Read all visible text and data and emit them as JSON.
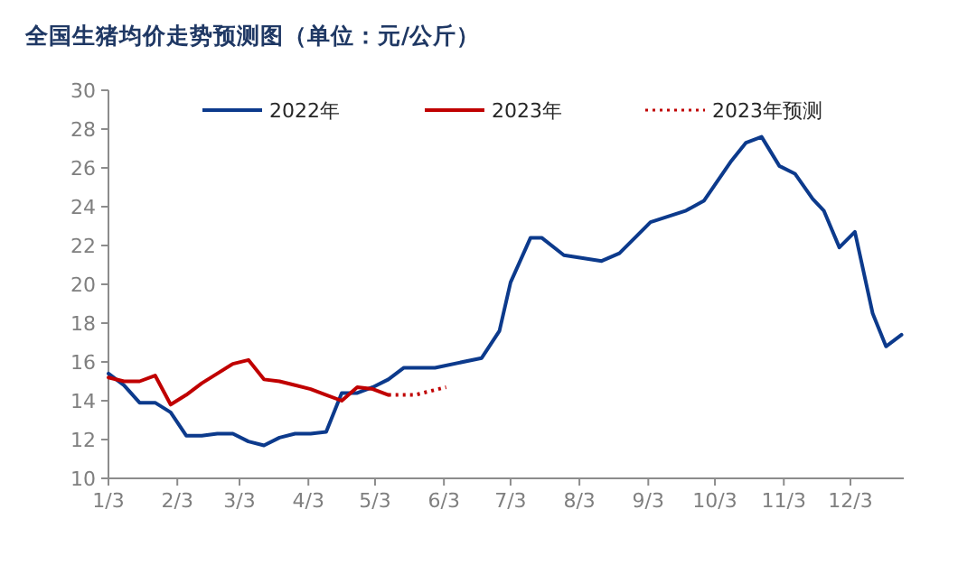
{
  "chart_data": {
    "type": "line",
    "title": "全国生猪均价走势预测图（单位：元/公斤）",
    "xlim": [
      "--01-03",
      "--12-27"
    ],
    "xticks": [
      {
        "value": "--01-03",
        "label": "1/3"
      },
      {
        "value": "--02-03",
        "label": "2/3"
      },
      {
        "value": "--03-03",
        "label": "3/3"
      },
      {
        "value": "--04-03",
        "label": "4/3"
      },
      {
        "value": "--05-03",
        "label": "5/3"
      },
      {
        "value": "--06-03",
        "label": "6/3"
      },
      {
        "value": "--07-03",
        "label": "7/3"
      },
      {
        "value": "--08-03",
        "label": "8/3"
      },
      {
        "value": "--09-03",
        "label": "9/3"
      },
      {
        "value": "--10-03",
        "label": "10/3"
      },
      {
        "value": "--11-03",
        "label": "11/3"
      },
      {
        "value": "--12-03",
        "label": "12/3"
      }
    ],
    "ylim": [
      10,
      30
    ],
    "yticks": [
      10,
      12,
      14,
      16,
      18,
      20,
      22,
      24,
      26,
      28,
      30
    ],
    "grid": false,
    "legend": "top",
    "marker": "none",
    "series": [
      {
        "name": "2022年",
        "color": "#0c3a8c",
        "line_style": "solid",
        "x": [
          "--01-03",
          "--01-10",
          "--01-17",
          "--01-24",
          "--01-31",
          "--02-07",
          "--02-14",
          "--02-21",
          "--02-28",
          "--03-07",
          "--03-14",
          "--03-21",
          "--03-28",
          "--04-04",
          "--04-11",
          "--04-18",
          "--04-25",
          "--05-02",
          "--05-09",
          "--05-16",
          "--05-23",
          "--05-30",
          "--06-20",
          "--06-28",
          "--07-03",
          "--07-12",
          "--07-17",
          "--07-27",
          "--08-13",
          "--08-21",
          "--09-04",
          "--09-20",
          "--09-28",
          "--10-10",
          "--10-17",
          "--10-24",
          "--11-01",
          "--11-08",
          "--11-16",
          "--11-21",
          "--11-28",
          "--12-05",
          "--12-13",
          "--12-19",
          "--12-26"
        ],
        "values": [
          15.4,
          14.8,
          13.9,
          13.9,
          13.4,
          12.2,
          12.2,
          12.3,
          12.3,
          11.9,
          11.7,
          12.1,
          12.3,
          12.3,
          12.4,
          14.4,
          14.4,
          14.7,
          15.1,
          15.7,
          15.7,
          15.7,
          16.2,
          17.6,
          20.1,
          22.4,
          22.4,
          21.5,
          21.2,
          21.6,
          23.2,
          23.8,
          24.3,
          26.3,
          27.3,
          27.6,
          26.1,
          25.7,
          24.4,
          23.8,
          21.9,
          22.7,
          18.5,
          16.8,
          17.4
        ]
      },
      {
        "name": "2023年",
        "color": "#c00000",
        "line_style": "solid",
        "x": [
          "--01-03",
          "--01-10",
          "--01-17",
          "--01-24",
          "--01-31",
          "--02-07",
          "--02-14",
          "--02-21",
          "--02-28",
          "--03-07",
          "--03-14",
          "--03-21",
          "--03-28",
          "--04-04",
          "--04-11",
          "--04-18",
          "--04-25",
          "--05-02",
          "--05-09"
        ],
        "values": [
          15.2,
          15.0,
          15.0,
          15.3,
          13.8,
          14.3,
          14.9,
          15.4,
          15.9,
          16.1,
          15.1,
          15.0,
          14.8,
          14.6,
          14.3,
          14.0,
          14.7,
          14.6,
          14.3
        ]
      },
      {
        "name": "2023年预测",
        "color": "#c00000",
        "line_style": "dotted",
        "x": [
          "--05-09",
          "--05-21",
          "--06-04"
        ],
        "values": [
          14.3,
          14.3,
          14.7
        ]
      }
    ]
  }
}
